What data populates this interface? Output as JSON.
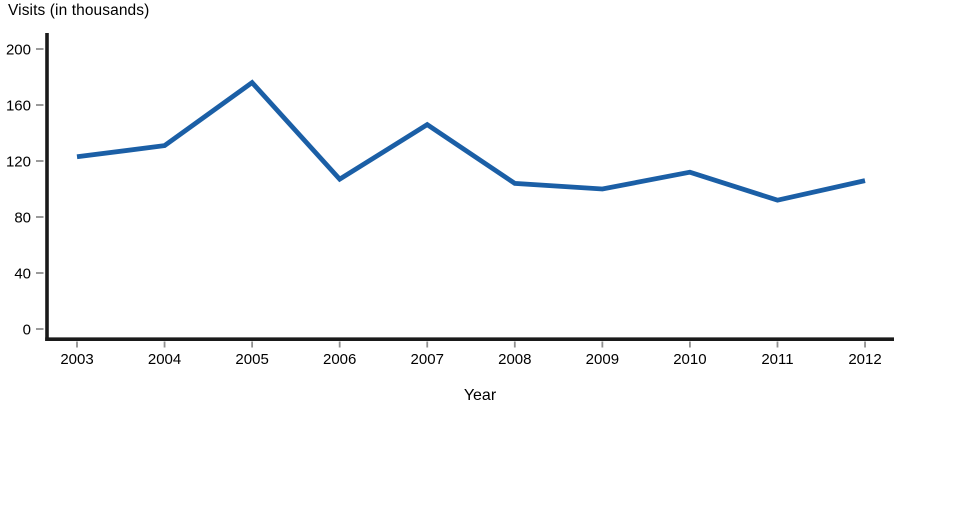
{
  "chart_data": {
    "type": "line",
    "title": "",
    "ylabel": "Visits (in thousands)",
    "xlabel": "Year",
    "x": [
      2003,
      2004,
      2005,
      2006,
      2007,
      2008,
      2009,
      2010,
      2011,
      2012
    ],
    "series": [
      {
        "name": "Visits (in thousands)",
        "values": [
          123,
          131,
          176,
          107,
          146,
          104,
          100,
          112,
          92,
          106
        ]
      }
    ],
    "ylim": [
      0,
      200
    ],
    "yticks": [
      0,
      40,
      80,
      120,
      160,
      200
    ],
    "grid": false,
    "legend_position": "none",
    "line_color": "#1b5fa6",
    "axis_color": "#1a1a1a",
    "tick_color": "#8f8f8f",
    "text_color": "#000000",
    "background": "#ffffff"
  }
}
